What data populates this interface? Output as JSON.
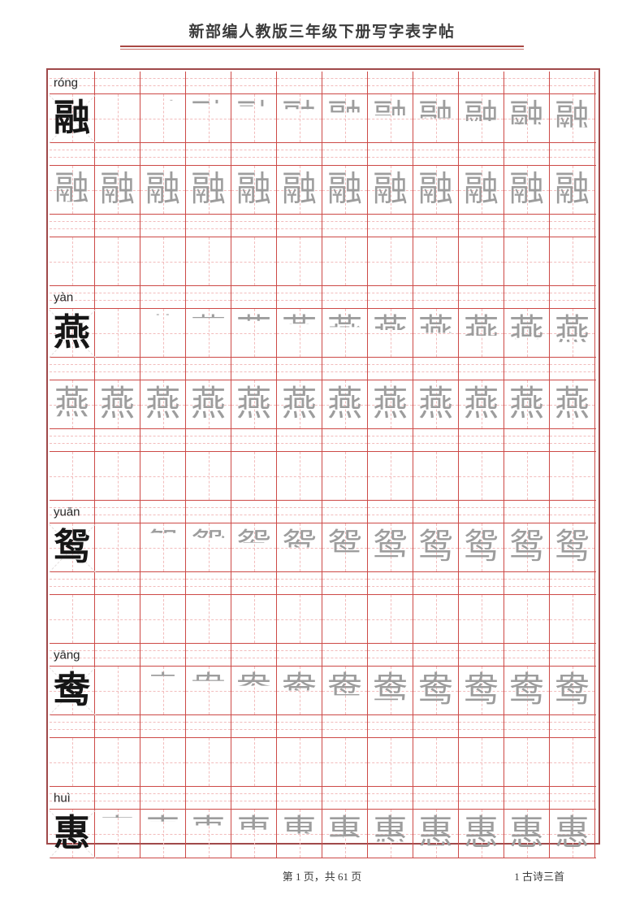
{
  "header": {
    "title": "新部编人教版三年级下册写字表字帖"
  },
  "footer": {
    "page_info": "第 1 页，共 61 页",
    "lesson": "1 古诗三首"
  },
  "colors": {
    "frame": "#a0494a",
    "grid_line": "#cd4a47",
    "dash_guide": "#f2bcbc",
    "diagonal_guide": "#e4dedd",
    "title_rule_top": "#a94743",
    "title_rule_bottom": "#c96f6a",
    "model_char": "#161616",
    "trace_char": "#9d9d9d"
  },
  "grid": {
    "columns": 12
  },
  "characters": [
    {
      "char": "融",
      "pinyin": "róng",
      "stroke_count": 16,
      "rows": [
        {
          "kind": "pinyin",
          "label": "róng"
        },
        {
          "kind": "glyphs",
          "lead": true,
          "fills": [
            0.06,
            0.13,
            0.19,
            0.25,
            0.31,
            0.38,
            0.44,
            0.5,
            0.56,
            0.63,
            0.69
          ]
        },
        {
          "kind": "pinyin"
        },
        {
          "kind": "glyphs",
          "lead": false,
          "fills": [
            0.75,
            0.81,
            0.88,
            0.94,
            1,
            1,
            1,
            1,
            1,
            1,
            1,
            1
          ]
        },
        {
          "kind": "pinyin"
        },
        {
          "kind": "glyphs",
          "lead": false,
          "fills": []
        }
      ]
    },
    {
      "char": "燕",
      "pinyin": "yàn",
      "stroke_count": 16,
      "rows": [
        {
          "kind": "pinyin",
          "label": "yàn"
        },
        {
          "kind": "glyphs",
          "lead": true,
          "fills": [
            0.06,
            0.13,
            0.19,
            0.25,
            0.31,
            0.38,
            0.44,
            0.5,
            0.56,
            0.63,
            0.69
          ]
        },
        {
          "kind": "pinyin"
        },
        {
          "kind": "glyphs",
          "lead": false,
          "fills": [
            0.75,
            0.81,
            0.88,
            0.94,
            1,
            1,
            1,
            1,
            1,
            1,
            1,
            1
          ]
        },
        {
          "kind": "pinyin"
        },
        {
          "kind": "glyphs",
          "lead": false,
          "fills": []
        }
      ]
    },
    {
      "char": "鸳",
      "pinyin": "yuān",
      "stroke_count": 10,
      "rows": [
        {
          "kind": "pinyin",
          "label": "yuān"
        },
        {
          "kind": "glyphs",
          "lead": true,
          "fills": [
            0.1,
            0.2,
            0.3,
            0.4,
            0.5,
            0.6,
            0.7,
            0.8,
            0.9,
            1,
            1
          ]
        },
        {
          "kind": "pinyin"
        },
        {
          "kind": "glyphs",
          "lead": false,
          "fills": []
        }
      ]
    },
    {
      "char": "鸯",
      "pinyin": "yāng",
      "stroke_count": 10,
      "rows": [
        {
          "kind": "pinyin",
          "label": "yāng"
        },
        {
          "kind": "glyphs",
          "lead": true,
          "fills": [
            0.1,
            0.2,
            0.3,
            0.4,
            0.5,
            0.6,
            0.7,
            0.8,
            0.9,
            1,
            1
          ]
        },
        {
          "kind": "pinyin"
        },
        {
          "kind": "glyphs",
          "lead": false,
          "fills": []
        }
      ]
    },
    {
      "char": "惠",
      "pinyin": "huì",
      "stroke_count": 12,
      "rows": [
        {
          "kind": "pinyin",
          "label": "huì"
        },
        {
          "kind": "glyphs",
          "lead": true,
          "fills": [
            0.17,
            0.25,
            0.33,
            0.42,
            0.5,
            0.58,
            0.67,
            0.75,
            0.83,
            0.92,
            1
          ]
        }
      ]
    }
  ]
}
